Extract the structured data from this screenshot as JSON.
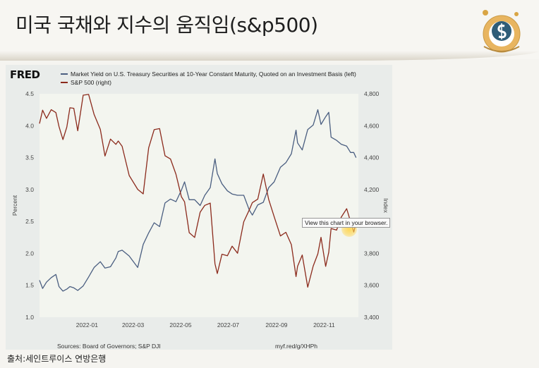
{
  "slide": {
    "title": "미국 국채와 지수의 움직임(s&p500)",
    "credit": "출처:세인트루이스 연방은행"
  },
  "fred": {
    "logo_text": "FRED",
    "source_text": "Sources: Board of Governors; S&P DJI",
    "url_text": "myf.red/g/XHPh",
    "tooltip": "View this chart in your browser."
  },
  "colors": {
    "yield_line": "#4a5e80",
    "sp500_line": "#8b2a1c",
    "panel_bg": "#e9ecea",
    "plot_bg": "#f3f5ef"
  },
  "chart_data": {
    "type": "line",
    "x_tick_labels": [
      "2022-01",
      "2022-03",
      "2022-05",
      "2022-07",
      "2022-09",
      "2022-11"
    ],
    "xlim": [
      "2021-11-01",
      "2022-12-15"
    ],
    "ylabel_left": "Percent",
    "ylabel_right": "Index",
    "ylim_left": [
      1.0,
      4.5
    ],
    "ylim_right": [
      3400,
      4800
    ],
    "left_ticks": [
      "1.0",
      "1.5",
      "2.0",
      "2.5",
      "3.0",
      "3.5",
      "4.0",
      "4.5"
    ],
    "right_ticks": [
      "3,400",
      "3,600",
      "3,800",
      "4,000",
      "4,200",
      "4,400",
      "4,600",
      "4,800"
    ],
    "grid": "none",
    "legend_placement": "top-left",
    "series": [
      {
        "name": "Market Yield on U.S. Treasury Securities at 10-Year Constant Maturity, Quoted on an Investment Basis (left)",
        "axis": "left",
        "points": [
          [
            "2021-11-01",
            1.58
          ],
          [
            "2021-11-05",
            1.45
          ],
          [
            "2021-11-10",
            1.55
          ],
          [
            "2021-11-16",
            1.62
          ],
          [
            "2021-11-22",
            1.67
          ],
          [
            "2021-11-26",
            1.48
          ],
          [
            "2021-12-01",
            1.41
          ],
          [
            "2021-12-06",
            1.44
          ],
          [
            "2021-12-10",
            1.48
          ],
          [
            "2021-12-15",
            1.46
          ],
          [
            "2021-12-20",
            1.42
          ],
          [
            "2021-12-27",
            1.49
          ],
          [
            "2022-01-03",
            1.63
          ],
          [
            "2022-01-10",
            1.78
          ],
          [
            "2022-01-18",
            1.87
          ],
          [
            "2022-01-24",
            1.77
          ],
          [
            "2022-01-31",
            1.79
          ],
          [
            "2022-02-07",
            1.93
          ],
          [
            "2022-02-10",
            2.03
          ],
          [
            "2022-02-15",
            2.05
          ],
          [
            "2022-02-24",
            1.96
          ],
          [
            "2022-03-07",
            1.78
          ],
          [
            "2022-03-14",
            2.14
          ],
          [
            "2022-03-21",
            2.32
          ],
          [
            "2022-03-28",
            2.48
          ],
          [
            "2022-04-04",
            2.42
          ],
          [
            "2022-04-11",
            2.79
          ],
          [
            "2022-04-18",
            2.85
          ],
          [
            "2022-04-25",
            2.81
          ],
          [
            "2022-05-02",
            2.99
          ],
          [
            "2022-05-06",
            3.12
          ],
          [
            "2022-05-12",
            2.84
          ],
          [
            "2022-05-19",
            2.84
          ],
          [
            "2022-05-26",
            2.75
          ],
          [
            "2022-06-01",
            2.91
          ],
          [
            "2022-06-08",
            3.03
          ],
          [
            "2022-06-14",
            3.48
          ],
          [
            "2022-06-17",
            3.25
          ],
          [
            "2022-06-23",
            3.09
          ],
          [
            "2022-06-30",
            2.98
          ],
          [
            "2022-07-06",
            2.93
          ],
          [
            "2022-07-13",
            2.91
          ],
          [
            "2022-07-21",
            2.91
          ],
          [
            "2022-07-28",
            2.68
          ],
          [
            "2022-08-01",
            2.6
          ],
          [
            "2022-08-08",
            2.76
          ],
          [
            "2022-08-15",
            2.8
          ],
          [
            "2022-08-22",
            3.03
          ],
          [
            "2022-08-29",
            3.12
          ],
          [
            "2022-09-06",
            3.35
          ],
          [
            "2022-09-13",
            3.42
          ],
          [
            "2022-09-20",
            3.56
          ],
          [
            "2022-09-26",
            3.93
          ],
          [
            "2022-09-28",
            3.73
          ],
          [
            "2022-10-04",
            3.62
          ],
          [
            "2022-10-11",
            3.94
          ],
          [
            "2022-10-18",
            4.01
          ],
          [
            "2022-10-24",
            4.25
          ],
          [
            "2022-10-28",
            4.02
          ],
          [
            "2022-11-03",
            4.14
          ],
          [
            "2022-11-07",
            4.21
          ],
          [
            "2022-11-10",
            3.82
          ],
          [
            "2022-11-17",
            3.77
          ],
          [
            "2022-11-23",
            3.71
          ],
          [
            "2022-11-30",
            3.68
          ],
          [
            "2022-12-05",
            3.58
          ],
          [
            "2022-12-09",
            3.58
          ],
          [
            "2022-12-12",
            3.5
          ]
        ]
      },
      {
        "name": "S&P 500 (right)",
        "axis": "right",
        "points": [
          [
            "2021-11-01",
            4613
          ],
          [
            "2021-11-05",
            4697
          ],
          [
            "2021-11-10",
            4646
          ],
          [
            "2021-11-16",
            4700
          ],
          [
            "2021-11-22",
            4682
          ],
          [
            "2021-11-26",
            4595
          ],
          [
            "2021-12-01",
            4513
          ],
          [
            "2021-12-06",
            4591
          ],
          [
            "2021-12-10",
            4712
          ],
          [
            "2021-12-15",
            4709
          ],
          [
            "2021-12-20",
            4568
          ],
          [
            "2021-12-27",
            4791
          ],
          [
            "2022-01-03",
            4796
          ],
          [
            "2022-01-10",
            4670
          ],
          [
            "2022-01-18",
            4577
          ],
          [
            "2022-01-24",
            4410
          ],
          [
            "2022-01-31",
            4516
          ],
          [
            "2022-02-07",
            4483
          ],
          [
            "2022-02-10",
            4504
          ],
          [
            "2022-02-15",
            4471
          ],
          [
            "2022-02-24",
            4288
          ],
          [
            "2022-03-07",
            4201
          ],
          [
            "2022-03-14",
            4173
          ],
          [
            "2022-03-21",
            4461
          ],
          [
            "2022-03-28",
            4575
          ],
          [
            "2022-04-04",
            4582
          ],
          [
            "2022-04-11",
            4412
          ],
          [
            "2022-04-18",
            4391
          ],
          [
            "2022-04-25",
            4296
          ],
          [
            "2022-05-02",
            4155
          ],
          [
            "2022-05-06",
            4123
          ],
          [
            "2022-05-12",
            3930
          ],
          [
            "2022-05-19",
            3900
          ],
          [
            "2022-05-26",
            4058
          ],
          [
            "2022-06-01",
            4101
          ],
          [
            "2022-06-08",
            4115
          ],
          [
            "2022-06-14",
            3735
          ],
          [
            "2022-06-17",
            3674
          ],
          [
            "2022-06-23",
            3795
          ],
          [
            "2022-06-30",
            3785
          ],
          [
            "2022-07-06",
            3845
          ],
          [
            "2022-07-13",
            3801
          ],
          [
            "2022-07-21",
            3998
          ],
          [
            "2022-07-28",
            4072
          ],
          [
            "2022-08-01",
            4118
          ],
          [
            "2022-08-08",
            4140
          ],
          [
            "2022-08-15",
            4297
          ],
          [
            "2022-08-22",
            4137
          ],
          [
            "2022-08-29",
            4030
          ],
          [
            "2022-09-06",
            3909
          ],
          [
            "2022-09-13",
            3932
          ],
          [
            "2022-09-20",
            3855
          ],
          [
            "2022-09-26",
            3655
          ],
          [
            "2022-09-28",
            3719
          ],
          [
            "2022-10-04",
            3790
          ],
          [
            "2022-10-11",
            3588
          ],
          [
            "2022-10-18",
            3720
          ],
          [
            "2022-10-24",
            3797
          ],
          [
            "2022-10-28",
            3901
          ],
          [
            "2022-11-03",
            3719
          ],
          [
            "2022-11-07",
            3807
          ],
          [
            "2022-11-10",
            3956
          ],
          [
            "2022-11-17",
            3946
          ],
          [
            "2022-11-23",
            4027
          ],
          [
            "2022-11-30",
            4080
          ],
          [
            "2022-12-05",
            3999
          ],
          [
            "2022-12-09",
            3934
          ],
          [
            "2022-12-12",
            3990
          ]
        ]
      }
    ]
  }
}
